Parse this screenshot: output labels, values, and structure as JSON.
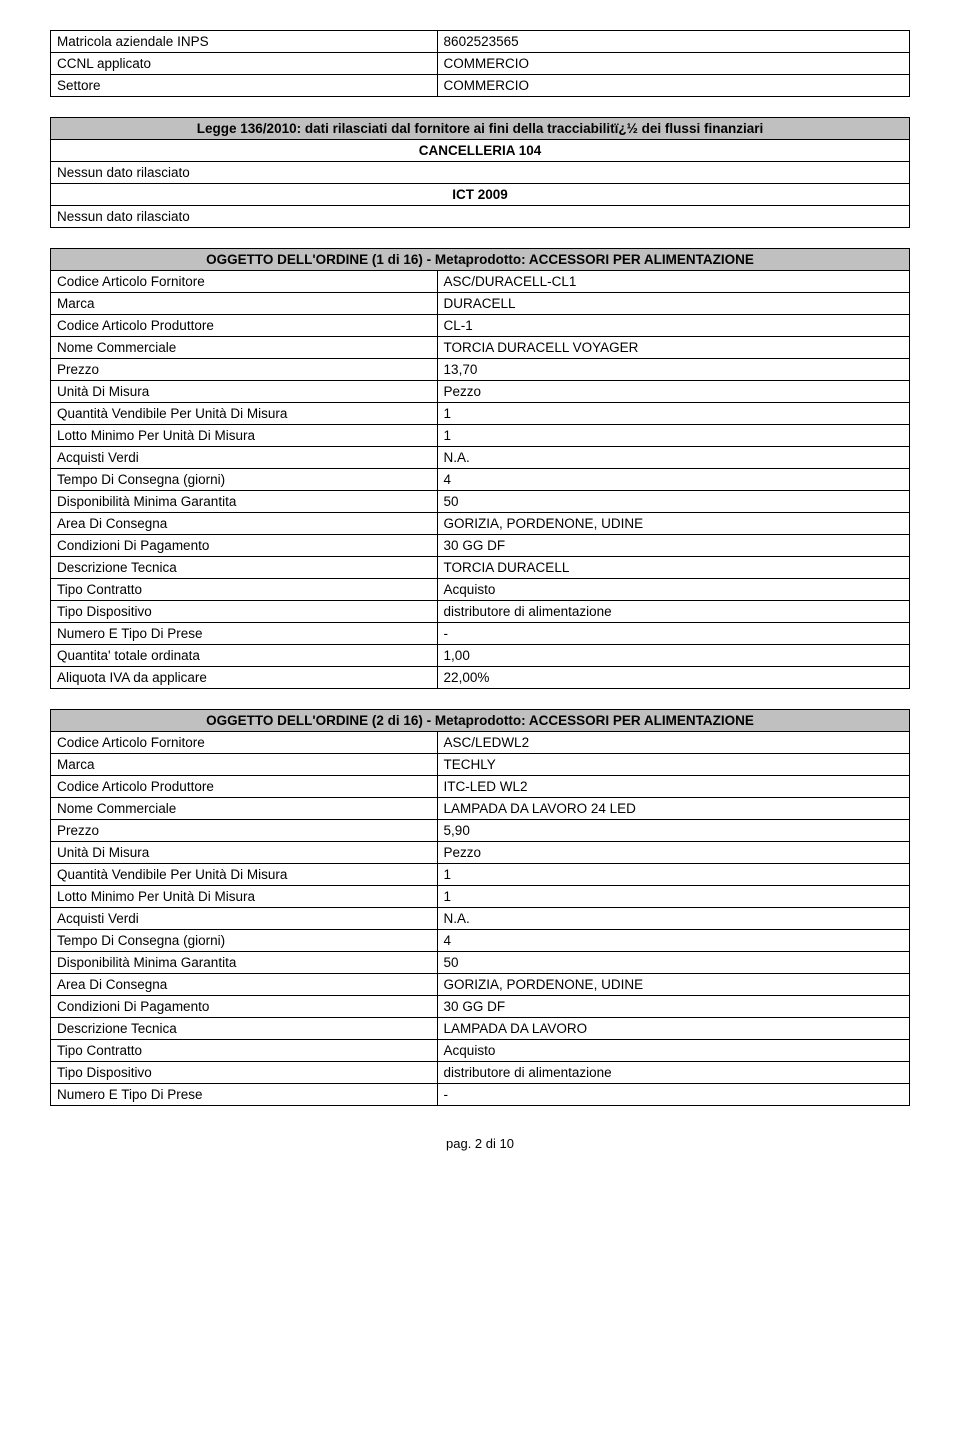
{
  "top_table": {
    "rows": [
      {
        "label": "Matricola aziendale INPS",
        "value": "8602523565"
      },
      {
        "label": "CCNL applicato",
        "value": "COMMERCIO"
      },
      {
        "label": "Settore",
        "value": "COMMERCIO"
      }
    ]
  },
  "legge": {
    "header": "Legge 136/2010: dati rilasciati dal fornitore ai fini della tracciabilitï¿½ dei flussi finanziari",
    "sub1": "CANCELLERIA 104",
    "row1": "Nessun dato rilasciato",
    "sub2": "ICT 2009",
    "row2": "Nessun dato rilasciato"
  },
  "order1": {
    "header": "OGGETTO DELL'ORDINE (1 di 16) - Metaprodotto: ACCESSORI PER ALIMENTAZIONE",
    "rows": [
      {
        "label": "Codice Articolo Fornitore",
        "value": "ASC/DURACELL-CL1"
      },
      {
        "label": "Marca",
        "value": "DURACELL"
      },
      {
        "label": "Codice Articolo Produttore",
        "value": "CL-1"
      },
      {
        "label": "Nome Commerciale",
        "value": "TORCIA DURACELL VOYAGER"
      },
      {
        "label": "Prezzo",
        "value": "13,70"
      },
      {
        "label": "Unità Di Misura",
        "value": "Pezzo"
      },
      {
        "label": "Quantità Vendibile Per Unità Di Misura",
        "value": "1"
      },
      {
        "label": "Lotto Minimo Per Unità Di Misura",
        "value": "1"
      },
      {
        "label": "Acquisti Verdi",
        "value": "N.A."
      },
      {
        "label": "Tempo Di Consegna (giorni)",
        "value": "4"
      },
      {
        "label": "Disponibilità Minima Garantita",
        "value": "50"
      },
      {
        "label": "Area Di Consegna",
        "value": "GORIZIA, PORDENONE, UDINE"
      },
      {
        "label": "Condizioni Di Pagamento",
        "value": "30 GG DF"
      },
      {
        "label": "Descrizione Tecnica",
        "value": "TORCIA DURACELL"
      },
      {
        "label": "Tipo Contratto",
        "value": "Acquisto"
      },
      {
        "label": "Tipo Dispositivo",
        "value": "distributore di alimentazione"
      },
      {
        "label": "Numero E Tipo Di Prese",
        "value": "-"
      },
      {
        "label": "Quantita' totale ordinata",
        "value": "1,00"
      },
      {
        "label": "Aliquota IVA da applicare",
        "value": "22,00%"
      }
    ]
  },
  "order2": {
    "header": "OGGETTO DELL'ORDINE (2 di 16) - Metaprodotto: ACCESSORI PER ALIMENTAZIONE",
    "rows": [
      {
        "label": "Codice Articolo Fornitore",
        "value": "ASC/LEDWL2"
      },
      {
        "label": "Marca",
        "value": "TECHLY"
      },
      {
        "label": "Codice Articolo Produttore",
        "value": "ITC-LED WL2"
      },
      {
        "label": "Nome Commerciale",
        "value": "LAMPADA DA LAVORO 24 LED"
      },
      {
        "label": "Prezzo",
        "value": "5,90"
      },
      {
        "label": "Unità Di Misura",
        "value": "Pezzo"
      },
      {
        "label": "Quantità Vendibile Per Unità Di Misura",
        "value": "1"
      },
      {
        "label": "Lotto Minimo Per Unità Di Misura",
        "value": "1"
      },
      {
        "label": "Acquisti Verdi",
        "value": "N.A."
      },
      {
        "label": "Tempo Di Consegna (giorni)",
        "value": "4"
      },
      {
        "label": "Disponibilità Minima Garantita",
        "value": "50"
      },
      {
        "label": "Area Di Consegna",
        "value": "GORIZIA, PORDENONE, UDINE"
      },
      {
        "label": "Condizioni Di Pagamento",
        "value": "30 GG DF"
      },
      {
        "label": "Descrizione Tecnica",
        "value": "LAMPADA DA LAVORO"
      },
      {
        "label": "Tipo Contratto",
        "value": "Acquisto"
      },
      {
        "label": "Tipo Dispositivo",
        "value": "distributore di alimentazione"
      },
      {
        "label": "Numero E Tipo Di Prese",
        "value": "-"
      }
    ]
  },
  "footer": "pag. 2 di 10",
  "style": {
    "header_bg": "#c0c0c0",
    "border_color": "#000000",
    "font_size": 13.5
  }
}
